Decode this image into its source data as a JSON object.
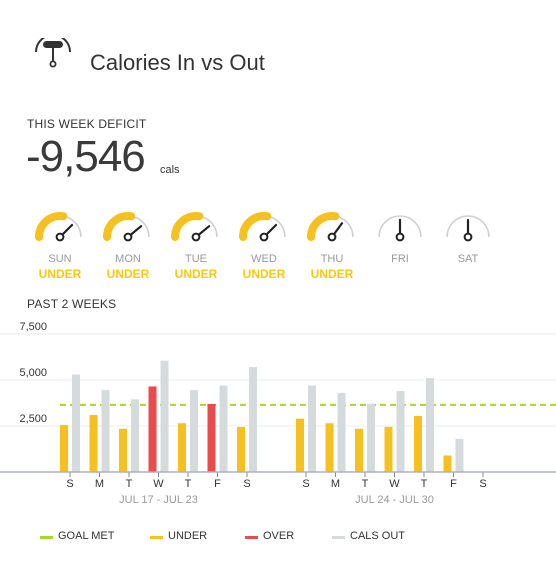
{
  "header": {
    "title": "Calories In vs Out",
    "icon": "meal-clock-icon"
  },
  "deficit": {
    "label": "THIS WEEK DEFICIT",
    "value": "-9,546",
    "unit": "cals"
  },
  "days": [
    {
      "name": "SUN",
      "status": "UNDER",
      "level": 0.75,
      "filled": true
    },
    {
      "name": "MON",
      "status": "UNDER",
      "level": 0.78,
      "filled": true
    },
    {
      "name": "TUE",
      "status": "UNDER",
      "level": 0.78,
      "filled": true
    },
    {
      "name": "WED",
      "status": "UNDER",
      "level": 0.75,
      "filled": true
    },
    {
      "name": "THU",
      "status": "UNDER",
      "level": 0.7,
      "filled": true
    },
    {
      "name": "FRI",
      "status": "",
      "level": 0.5,
      "filled": false
    },
    {
      "name": "SAT",
      "status": "",
      "level": 0.5,
      "filled": false
    }
  ],
  "weeks_label": "PAST 2 WEEKS",
  "colors": {
    "under": "#f5c121",
    "over": "#e84c4c",
    "cals_out": "#d5dadc",
    "goal_met": "#a8d62a",
    "gauge_track": "#cfcfcf",
    "needle": "#222222"
  },
  "chart_data": {
    "type": "bar",
    "ylim": [
      0,
      7500
    ],
    "yticks": [
      {
        "value": 2500,
        "label": "2,500"
      },
      {
        "value": 5000,
        "label": "5,000"
      },
      {
        "value": 7500,
        "label": "7,500"
      }
    ],
    "goal": 3650,
    "weeks": [
      {
        "label": "JUL 17 - JUL 23",
        "days": [
          {
            "day": "S",
            "in": 2550,
            "out": 5300,
            "status": "under"
          },
          {
            "day": "M",
            "in": 3100,
            "out": 4450,
            "status": "under"
          },
          {
            "day": "T",
            "in": 2350,
            "out": 3950,
            "status": "under"
          },
          {
            "day": "W",
            "in": 4650,
            "out": 6050,
            "status": "over"
          },
          {
            "day": "T",
            "in": 2650,
            "out": 4450,
            "status": "under"
          },
          {
            "day": "F",
            "in": 3700,
            "out": 4700,
            "status": "over"
          },
          {
            "day": "S",
            "in": 2450,
            "out": 5700,
            "status": "under"
          }
        ]
      },
      {
        "label": "JUL 24 - JUL 30",
        "days": [
          {
            "day": "S",
            "in": 2900,
            "out": 4700,
            "status": "under"
          },
          {
            "day": "M",
            "in": 2650,
            "out": 4300,
            "status": "under"
          },
          {
            "day": "T",
            "in": 2350,
            "out": 3700,
            "status": "under"
          },
          {
            "day": "W",
            "in": 2450,
            "out": 4400,
            "status": "under"
          },
          {
            "day": "T",
            "in": 3050,
            "out": 5100,
            "status": "under"
          },
          {
            "day": "F",
            "in": 900,
            "out": 1800,
            "status": "under"
          },
          {
            "day": "S",
            "in": 0,
            "out": 0,
            "status": "none"
          }
        ]
      }
    ]
  },
  "legend": [
    {
      "label": "GOAL MET",
      "key": "goal_met"
    },
    {
      "label": "UNDER",
      "key": "under"
    },
    {
      "label": "OVER",
      "key": "over"
    },
    {
      "label": "CALS OUT",
      "key": "cals_out"
    }
  ]
}
